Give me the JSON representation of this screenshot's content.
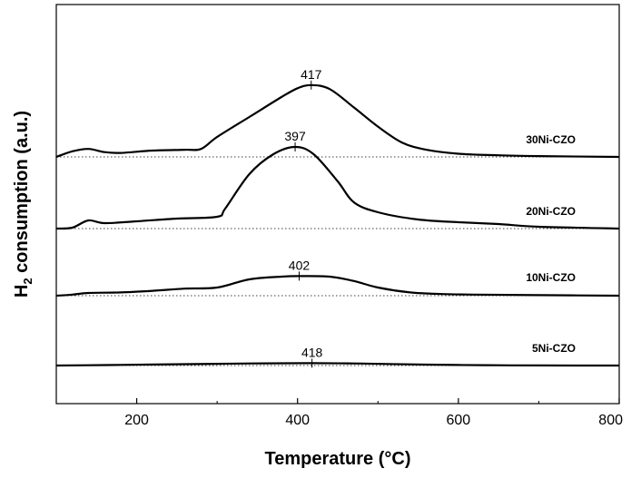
{
  "chart_data": {
    "type": "line",
    "xlabel": "Temperature (°C)",
    "ylabel_main": "H",
    "ylabel_sub": "2",
    "ylabel_rest": " consumption (a.u.)",
    "xlim": [
      100,
      800
    ],
    "xticks": [
      200,
      400,
      600,
      800
    ],
    "series": [
      {
        "name": "30Ni-CZO",
        "peak_label": "417",
        "peak_x": 417,
        "offset": 3,
        "points": [
          [
            100,
            0
          ],
          [
            120,
            0.07
          ],
          [
            140,
            0.1
          ],
          [
            160,
            0.06
          ],
          [
            180,
            0.05
          ],
          [
            220,
            0.08
          ],
          [
            260,
            0.09
          ],
          [
            280,
            0.1
          ],
          [
            300,
            0.25
          ],
          [
            340,
            0.5
          ],
          [
            380,
            0.75
          ],
          [
            400,
            0.86
          ],
          [
            417,
            0.9
          ],
          [
            440,
            0.85
          ],
          [
            470,
            0.62
          ],
          [
            500,
            0.38
          ],
          [
            530,
            0.18
          ],
          [
            560,
            0.09
          ],
          [
            600,
            0.04
          ],
          [
            650,
            0.02
          ],
          [
            700,
            0.01
          ],
          [
            800,
            0
          ]
        ]
      },
      {
        "name": "20Ni-CZO",
        "peak_label": "397",
        "peak_x": 397,
        "offset": 2,
        "points": [
          [
            100,
            0
          ],
          [
            120,
            0.01
          ],
          [
            140,
            0.09
          ],
          [
            160,
            0.06
          ],
          [
            200,
            0.08
          ],
          [
            250,
            0.11
          ],
          [
            300,
            0.13
          ],
          [
            310,
            0.22
          ],
          [
            340,
            0.6
          ],
          [
            370,
            0.82
          ],
          [
            397,
            0.9
          ],
          [
            420,
            0.82
          ],
          [
            450,
            0.52
          ],
          [
            470,
            0.29
          ],
          [
            500,
            0.18
          ],
          [
            550,
            0.1
          ],
          [
            600,
            0.07
          ],
          [
            650,
            0.05
          ],
          [
            700,
            0.02
          ],
          [
            800,
            0
          ]
        ]
      },
      {
        "name": "10Ni-CZO",
        "peak_label": "402",
        "peak_x": 402,
        "offset": 1,
        "points": [
          [
            100,
            0
          ],
          [
            120,
            0.02
          ],
          [
            140,
            0.05
          ],
          [
            180,
            0.06
          ],
          [
            220,
            0.09
          ],
          [
            260,
            0.13
          ],
          [
            300,
            0.15
          ],
          [
            340,
            0.3
          ],
          [
            380,
            0.35
          ],
          [
            402,
            0.36
          ],
          [
            440,
            0.35
          ],
          [
            470,
            0.27
          ],
          [
            500,
            0.15
          ],
          [
            540,
            0.06
          ],
          [
            580,
            0.03
          ],
          [
            620,
            0.02
          ],
          [
            700,
            0.01
          ],
          [
            800,
            0
          ]
        ]
      },
      {
        "name": "5Ni-CZO",
        "peak_label": "418",
        "peak_x": 418,
        "offset": 0,
        "points": [
          [
            100,
            0
          ],
          [
            160,
            0.03
          ],
          [
            220,
            0.07
          ],
          [
            300,
            0.12
          ],
          [
            360,
            0.15
          ],
          [
            418,
            0.16
          ],
          [
            480,
            0.14
          ],
          [
            540,
            0.08
          ],
          [
            600,
            0.04
          ],
          [
            650,
            0.02
          ],
          [
            700,
            0.005
          ],
          [
            800,
            0
          ]
        ]
      }
    ]
  }
}
